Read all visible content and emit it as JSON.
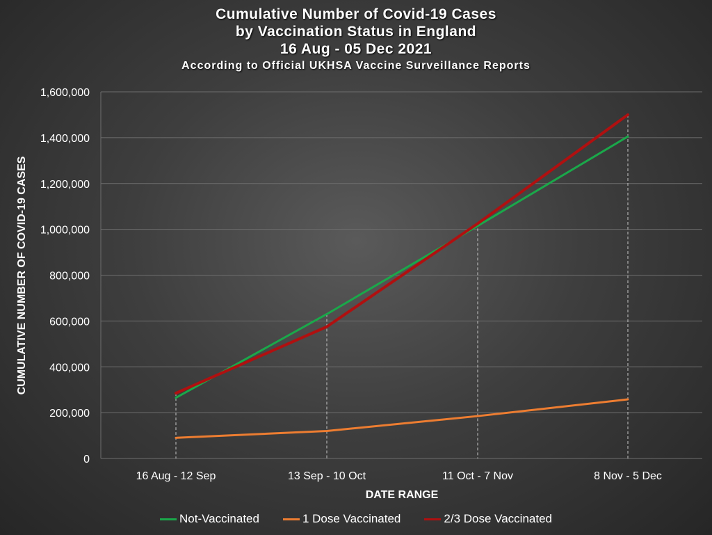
{
  "chart_data": {
    "type": "line",
    "title_lines": [
      "Cumulative Number of Covid-19 Cases",
      "by Vaccination Status in England",
      "16 Aug - 05 Dec 2021"
    ],
    "subtitle": "According to Official UKHSA Vaccine Surveillance Reports",
    "xlabel": "DATE RANGE",
    "ylabel": "CUMULATIVE NUMBER OF COVID-19 CASES",
    "categories": [
      "16 Aug - 12 Sep",
      "13 Sep - 10 Oct",
      "11 Oct - 7 Nov",
      "8 Nov - 5 Dec"
    ],
    "ylim": [
      0,
      1600000
    ],
    "yticks": [
      0,
      200000,
      400000,
      600000,
      800000,
      1000000,
      1200000,
      1400000,
      1600000
    ],
    "ytick_labels": [
      "0",
      "200,000",
      "400,000",
      "600,000",
      "800,000",
      "1,000,000",
      "1,200,000",
      "1,400,000",
      "1,600,000"
    ],
    "grid": true,
    "legend_position": "bottom",
    "series": [
      {
        "name": "Not-Vaccinated",
        "color": "#1aa84a",
        "values": [
          265000,
          630000,
          1015000,
          1405000
        ]
      },
      {
        "name": "1 Dose Vaccinated",
        "color": "#ed7d31",
        "values": [
          90000,
          120000,
          185000,
          258000
        ]
      },
      {
        "name": "2/3 Dose Vaccinated",
        "color": "#b01010",
        "values": [
          285000,
          575000,
          1025000,
          1500000
        ]
      }
    ]
  }
}
